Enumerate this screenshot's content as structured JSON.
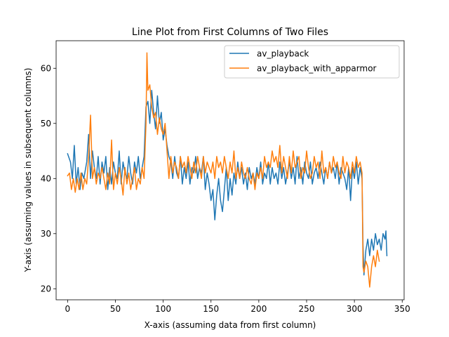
{
  "chart_data": {
    "type": "line",
    "title": "Line Plot from First Columns of Two Files",
    "xlabel": "X-axis (assuming data from first column)",
    "ylabel": "Y-axis (assuming values in subsequent columns)",
    "xlim": [
      -12,
      352
    ],
    "ylim": [
      18,
      65
    ],
    "xticks": [
      0,
      50,
      100,
      150,
      200,
      250,
      300,
      350
    ],
    "yticks": [
      20,
      30,
      40,
      50,
      60
    ],
    "grid": false,
    "legend_position": "top-right",
    "series": [
      {
        "name": "av_playback",
        "color": "#1f77b4",
        "points": [
          [
            0,
            44.5
          ],
          [
            3,
            43
          ],
          [
            5,
            40
          ],
          [
            7,
            46
          ],
          [
            9,
            39
          ],
          [
            11,
            42
          ],
          [
            13,
            38
          ],
          [
            15,
            41
          ],
          [
            17,
            40
          ],
          [
            20,
            43
          ],
          [
            22,
            48
          ],
          [
            24,
            40
          ],
          [
            26,
            45
          ],
          [
            28,
            42
          ],
          [
            30,
            40
          ],
          [
            32,
            44
          ],
          [
            34,
            39
          ],
          [
            36,
            43
          ],
          [
            38,
            41
          ],
          [
            40,
            44
          ],
          [
            42,
            38
          ],
          [
            44,
            42
          ],
          [
            46,
            39
          ],
          [
            48,
            43
          ],
          [
            50,
            41
          ],
          [
            52,
            40
          ],
          [
            54,
            45
          ],
          [
            56,
            39
          ],
          [
            58,
            43
          ],
          [
            60,
            41
          ],
          [
            62,
            40
          ],
          [
            64,
            44
          ],
          [
            66,
            41
          ],
          [
            68,
            39
          ],
          [
            70,
            43
          ],
          [
            72,
            41
          ],
          [
            74,
            44
          ],
          [
            76,
            40
          ],
          [
            78,
            42
          ],
          [
            80,
            44
          ],
          [
            82,
            53
          ],
          [
            84,
            54
          ],
          [
            86,
            50
          ],
          [
            88,
            56
          ],
          [
            90,
            52
          ],
          [
            92,
            49
          ],
          [
            94,
            55
          ],
          [
            96,
            50
          ],
          [
            98,
            52
          ],
          [
            100,
            47
          ],
          [
            102,
            49
          ],
          [
            104,
            46
          ],
          [
            106,
            44
          ],
          [
            108,
            43
          ],
          [
            110,
            40
          ],
          [
            112,
            44
          ],
          [
            114,
            41
          ],
          [
            116,
            40
          ],
          [
            118,
            44
          ],
          [
            120,
            39
          ],
          [
            122,
            42
          ],
          [
            124,
            40
          ],
          [
            126,
            43
          ],
          [
            128,
            39
          ],
          [
            130,
            42
          ],
          [
            132,
            41
          ],
          [
            134,
            44
          ],
          [
            136,
            40
          ],
          [
            138,
            42
          ],
          [
            140,
            41
          ],
          [
            142,
            44
          ],
          [
            144,
            38
          ],
          [
            146,
            41
          ],
          [
            148,
            39
          ],
          [
            150,
            36
          ],
          [
            152,
            38
          ],
          [
            154,
            32.5
          ],
          [
            156,
            37
          ],
          [
            158,
            40
          ],
          [
            160,
            36
          ],
          [
            162,
            34
          ],
          [
            164,
            38
          ],
          [
            166,
            42
          ],
          [
            168,
            36
          ],
          [
            170,
            40
          ],
          [
            172,
            37
          ],
          [
            174,
            41
          ],
          [
            176,
            39
          ],
          [
            178,
            43
          ],
          [
            180,
            40
          ],
          [
            182,
            42
          ],
          [
            184,
            39
          ],
          [
            186,
            41
          ],
          [
            188,
            38
          ],
          [
            190,
            42
          ],
          [
            192,
            40
          ],
          [
            194,
            41
          ],
          [
            196,
            39
          ],
          [
            198,
            42
          ],
          [
            200,
            40
          ],
          [
            202,
            43
          ],
          [
            204,
            39
          ],
          [
            206,
            41
          ],
          [
            208,
            40
          ],
          [
            210,
            43
          ],
          [
            212,
            39
          ],
          [
            214,
            42
          ],
          [
            216,
            40
          ],
          [
            218,
            41
          ],
          [
            220,
            39
          ],
          [
            222,
            43
          ],
          [
            224,
            40
          ],
          [
            226,
            42
          ],
          [
            228,
            39
          ],
          [
            230,
            41
          ],
          [
            232,
            43
          ],
          [
            234,
            40
          ],
          [
            236,
            42
          ],
          [
            238,
            39
          ],
          [
            240,
            44
          ],
          [
            242,
            40
          ],
          [
            244,
            42
          ],
          [
            246,
            39
          ],
          [
            248,
            43
          ],
          [
            250,
            41
          ],
          [
            252,
            40
          ],
          [
            254,
            43
          ],
          [
            256,
            39
          ],
          [
            258,
            41
          ],
          [
            260,
            42
          ],
          [
            262,
            40
          ],
          [
            264,
            43
          ],
          [
            266,
            41
          ],
          [
            268,
            39
          ],
          [
            270,
            42
          ],
          [
            272,
            40
          ],
          [
            274,
            43
          ],
          [
            276,
            41
          ],
          [
            278,
            42
          ],
          [
            280,
            40
          ],
          [
            282,
            43
          ],
          [
            284,
            39
          ],
          [
            286,
            42
          ],
          [
            288,
            41
          ],
          [
            290,
            40
          ],
          [
            292,
            38
          ],
          [
            294,
            42
          ],
          [
            296,
            36
          ],
          [
            298,
            42
          ],
          [
            300,
            40
          ],
          [
            302,
            43
          ],
          [
            304,
            39
          ],
          [
            306,
            42
          ],
          [
            308,
            40
          ],
          [
            309,
            28
          ],
          [
            310,
            22.5
          ],
          [
            312,
            27
          ],
          [
            314,
            29
          ],
          [
            316,
            26
          ],
          [
            318,
            29
          ],
          [
            320,
            27
          ],
          [
            322,
            30
          ],
          [
            324,
            28
          ],
          [
            326,
            29
          ],
          [
            328,
            27
          ],
          [
            330,
            30
          ],
          [
            332,
            29
          ],
          [
            333,
            30.5
          ],
          [
            334,
            26
          ]
        ]
      },
      {
        "name": "av_playback_with_apparmor",
        "color": "#ff7f0e",
        "points": [
          [
            0,
            40.5
          ],
          [
            2,
            41
          ],
          [
            4,
            38
          ],
          [
            6,
            40
          ],
          [
            8,
            37.5
          ],
          [
            10,
            40
          ],
          [
            12,
            38
          ],
          [
            14,
            41
          ],
          [
            16,
            38
          ],
          [
            18,
            40
          ],
          [
            20,
            39
          ],
          [
            22,
            44
          ],
          [
            24,
            51.5
          ],
          [
            26,
            40
          ],
          [
            28,
            42
          ],
          [
            30,
            39
          ],
          [
            32,
            41
          ],
          [
            34,
            40
          ],
          [
            36,
            42
          ],
          [
            38,
            40
          ],
          [
            40,
            38
          ],
          [
            42,
            41
          ],
          [
            44,
            39
          ],
          [
            46,
            47
          ],
          [
            48,
            38
          ],
          [
            50,
            41
          ],
          [
            52,
            39
          ],
          [
            54,
            42
          ],
          [
            56,
            40
          ],
          [
            58,
            37
          ],
          [
            60,
            42
          ],
          [
            62,
            39
          ],
          [
            64,
            41
          ],
          [
            66,
            38
          ],
          [
            68,
            40
          ],
          [
            70,
            42
          ],
          [
            72,
            38
          ],
          [
            74,
            40
          ],
          [
            76,
            39
          ],
          [
            78,
            42
          ],
          [
            80,
            40
          ],
          [
            82,
            50
          ],
          [
            83,
            62.8
          ],
          [
            84,
            56
          ],
          [
            86,
            57
          ],
          [
            88,
            53
          ],
          [
            90,
            51
          ],
          [
            92,
            52
          ],
          [
            94,
            48
          ],
          [
            96,
            51
          ],
          [
            98,
            49
          ],
          [
            100,
            48
          ],
          [
            102,
            50
          ],
          [
            104,
            45
          ],
          [
            106,
            40
          ],
          [
            108,
            44
          ],
          [
            110,
            41
          ],
          [
            112,
            43
          ],
          [
            114,
            42
          ],
          [
            116,
            40
          ],
          [
            118,
            44
          ],
          [
            120,
            42
          ],
          [
            122,
            43
          ],
          [
            124,
            41
          ],
          [
            126,
            44
          ],
          [
            128,
            42
          ],
          [
            130,
            40
          ],
          [
            132,
            43
          ],
          [
            134,
            41
          ],
          [
            136,
            44
          ],
          [
            138,
            42
          ],
          [
            140,
            40
          ],
          [
            142,
            44
          ],
          [
            144,
            41
          ],
          [
            146,
            43
          ],
          [
            148,
            42
          ],
          [
            150,
            41
          ],
          [
            152,
            43
          ],
          [
            154,
            40
          ],
          [
            156,
            44
          ],
          [
            158,
            42
          ],
          [
            160,
            43
          ],
          [
            162,
            41
          ],
          [
            164,
            44
          ],
          [
            166,
            42
          ],
          [
            168,
            40
          ],
          [
            170,
            43
          ],
          [
            172,
            41
          ],
          [
            174,
            45
          ],
          [
            176,
            40
          ],
          [
            178,
            42
          ],
          [
            180,
            40
          ],
          [
            182,
            43
          ],
          [
            184,
            41
          ],
          [
            186,
            40
          ],
          [
            188,
            42
          ],
          [
            190,
            40
          ],
          [
            192,
            39
          ],
          [
            194,
            41
          ],
          [
            196,
            38
          ],
          [
            198,
            41
          ],
          [
            200,
            40
          ],
          [
            202,
            42
          ],
          [
            204,
            40
          ],
          [
            206,
            44
          ],
          [
            208,
            42
          ],
          [
            210,
            43
          ],
          [
            212,
            42
          ],
          [
            214,
            45
          ],
          [
            216,
            43
          ],
          [
            218,
            44
          ],
          [
            220,
            42
          ],
          [
            222,
            46
          ],
          [
            224,
            41
          ],
          [
            226,
            44
          ],
          [
            228,
            42
          ],
          [
            230,
            40
          ],
          [
            232,
            44
          ],
          [
            234,
            41
          ],
          [
            236,
            45
          ],
          [
            238,
            42
          ],
          [
            240,
            43
          ],
          [
            242,
            44
          ],
          [
            244,
            40
          ],
          [
            246,
            42
          ],
          [
            248,
            41
          ],
          [
            250,
            45
          ],
          [
            252,
            42
          ],
          [
            254,
            40
          ],
          [
            256,
            41
          ],
          [
            258,
            44
          ],
          [
            260,
            42
          ],
          [
            262,
            43
          ],
          [
            264,
            40
          ],
          [
            266,
            45
          ],
          [
            268,
            41
          ],
          [
            270,
            42
          ],
          [
            272,
            40
          ],
          [
            274,
            43
          ],
          [
            276,
            41
          ],
          [
            278,
            44
          ],
          [
            280,
            42
          ],
          [
            282,
            43
          ],
          [
            284,
            41
          ],
          [
            286,
            40
          ],
          [
            288,
            44
          ],
          [
            290,
            41
          ],
          [
            292,
            43
          ],
          [
            294,
            42
          ],
          [
            296,
            40
          ],
          [
            298,
            43
          ],
          [
            300,
            41
          ],
          [
            302,
            44
          ],
          [
            304,
            42
          ],
          [
            306,
            43
          ],
          [
            308,
            41
          ],
          [
            309,
            24
          ],
          [
            310,
            23
          ],
          [
            312,
            25
          ],
          [
            314,
            24
          ],
          [
            316,
            20.3
          ],
          [
            318,
            24
          ],
          [
            320,
            26
          ],
          [
            322,
            24
          ],
          [
            324,
            27
          ],
          [
            326,
            25
          ]
        ]
      }
    ]
  }
}
